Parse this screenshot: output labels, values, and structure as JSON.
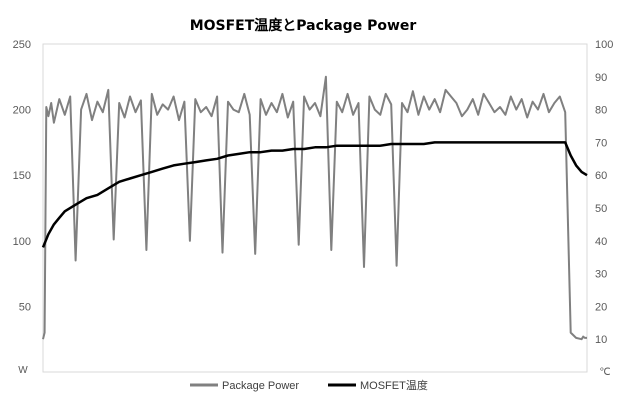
{
  "chart_data": {
    "type": "line",
    "title": "MOSFET温度とPackage Power",
    "xlabel": "",
    "y_left": {
      "unit": "W",
      "ticks": [
        "250",
        "200",
        "150",
        "100",
        "50"
      ],
      "range": [
        0,
        250
      ]
    },
    "y_right": {
      "unit": "℃",
      "ticks": [
        "100",
        "90",
        "80",
        "70",
        "60",
        "50",
        "40",
        "30",
        "20",
        "10"
      ],
      "range": [
        0,
        100
      ]
    },
    "x_range": [
      0,
      100
    ],
    "grid": false,
    "legend_position": "bottom",
    "series": [
      {
        "name": "Package Power",
        "axis": "left",
        "color": "#808080",
        "x": [
          0,
          0.3,
          0.6,
          1,
          1.5,
          2,
          3,
          4,
          5,
          6,
          7,
          8,
          9,
          10,
          11,
          12,
          13,
          14,
          15,
          16,
          17,
          18,
          19,
          20,
          21,
          22,
          23,
          24,
          25,
          26,
          27,
          28,
          29,
          30,
          31,
          32,
          33,
          34,
          35,
          36,
          37,
          38,
          39,
          40,
          41,
          42,
          43,
          44,
          45,
          46,
          47,
          48,
          49,
          50,
          51,
          52,
          53,
          54,
          55,
          56,
          57,
          58,
          59,
          60,
          61,
          62,
          63,
          64,
          65,
          66,
          67,
          68,
          69,
          70,
          71,
          72,
          73,
          74,
          75,
          76,
          77,
          78,
          79,
          80,
          81,
          82,
          83,
          84,
          85,
          86,
          87,
          88,
          89,
          90,
          91,
          92,
          93,
          94,
          95,
          96,
          97,
          98,
          99,
          99.3,
          99.6,
          100
        ],
        "y": [
          25,
          30,
          202,
          195,
          205,
          190,
          208,
          196,
          210,
          85,
          200,
          212,
          192,
          206,
          198,
          215,
          101,
          205,
          194,
          210,
          198,
          207,
          93,
          212,
          196,
          204,
          200,
          210,
          192,
          206,
          100,
          208,
          198,
          202,
          195,
          210,
          91,
          206,
          200,
          198,
          212,
          196,
          90,
          208,
          196,
          205,
          198,
          212,
          194,
          206,
          97,
          210,
          200,
          205,
          195,
          225,
          93,
          206,
          198,
          212,
          196,
          205,
          80,
          210,
          200,
          196,
          212,
          204,
          81,
          205,
          198,
          214,
          196,
          210,
          200,
          208,
          198,
          215,
          210,
          205,
          195,
          200,
          208,
          196,
          212,
          205,
          198,
          202,
          196,
          210,
          200,
          208,
          194,
          206,
          200,
          212,
          198,
          205,
          210,
          198,
          30,
          26,
          25,
          27,
          26,
          26
        ]
      },
      {
        "name": "MOSFET温度",
        "axis": "right",
        "color": "#000000",
        "x": [
          0,
          0.5,
          1,
          2,
          3,
          4,
          6,
          8,
          10,
          12,
          14,
          16,
          18,
          20,
          22,
          24,
          26,
          28,
          30,
          32,
          34,
          36,
          38,
          40,
          42,
          44,
          46,
          48,
          50,
          52,
          54,
          56,
          58,
          60,
          62,
          64,
          66,
          68,
          70,
          72,
          74,
          76,
          78,
          80,
          82,
          84,
          86,
          88,
          90,
          92,
          94,
          95,
          95.5,
          96,
          97,
          98,
          99,
          100
        ],
        "y": [
          38,
          40,
          42,
          45,
          47,
          49,
          51,
          53,
          54,
          56,
          58,
          59,
          60,
          61,
          62,
          63,
          63.5,
          64,
          64.5,
          65,
          66,
          66.5,
          67,
          67,
          67.5,
          67.5,
          68,
          68,
          68.5,
          68.5,
          69,
          69,
          69,
          69,
          69,
          69.5,
          69.5,
          69.5,
          69.5,
          70,
          70,
          70,
          70,
          70,
          70,
          70,
          70,
          70,
          70,
          70,
          70,
          70,
          70,
          70,
          66,
          63,
          61,
          60
        ]
      }
    ]
  }
}
